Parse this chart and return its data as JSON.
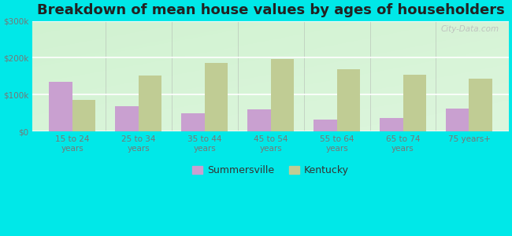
{
  "title": "Breakdown of mean house values by ages of householders",
  "categories": [
    "15 to 24\nyears",
    "25 to 34\nyears",
    "35 to 44\nyears",
    "45 to 54\nyears",
    "55 to 64\nyears",
    "65 to 74\nyears",
    "75 years+"
  ],
  "summersville": [
    135000,
    68000,
    50000,
    60000,
    32000,
    37000,
    63000
  ],
  "kentucky": [
    85000,
    152000,
    185000,
    197000,
    168000,
    153000,
    143000
  ],
  "summersville_color": "#c9a0d0",
  "kentucky_color": "#c0cc94",
  "bar_width": 0.35,
  "ylim": [
    0,
    300000
  ],
  "yticks": [
    0,
    100000,
    200000,
    300000
  ],
  "ytick_labels": [
    "$0",
    "$100k",
    "$200k",
    "$300k"
  ],
  "legend_labels": [
    "Summersville",
    "Kentucky"
  ],
  "outer_background": "#00e8e8",
  "title_fontsize": 13,
  "watermark": "City-Data.com",
  "tick_color": "#777777",
  "tick_fontsize": 7.5
}
